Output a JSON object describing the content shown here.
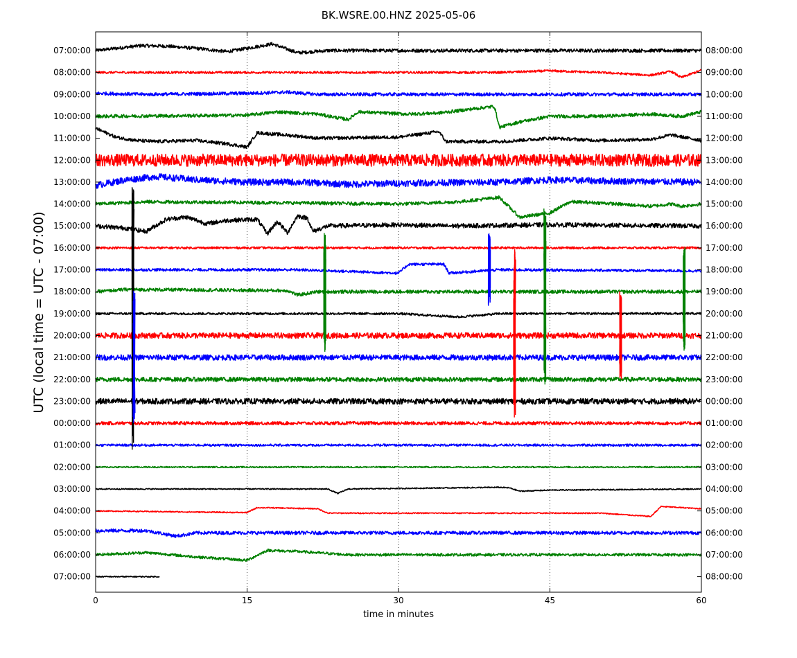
{
  "chart_data": {
    "type": "line",
    "title": "BK.WSRE.00.HNZ 2025-05-06",
    "xlabel": "time in minutes",
    "ylabel": "UTC (local time = UTC - 07:00)",
    "xlim": [
      0,
      60
    ],
    "x_ticks": [
      0,
      15,
      30,
      45,
      60
    ],
    "x_tick_labels": [
      "0",
      "15",
      "30",
      "45",
      "60"
    ],
    "grid": "vertical dotted",
    "colors": [
      "#000000",
      "#ff0000",
      "#0000ff",
      "#008000"
    ],
    "left_tick_labels": [
      "07:00:00",
      "08:00:00",
      "09:00:00",
      "10:00:00",
      "11:00:00",
      "12:00:00",
      "13:00:00",
      "14:00:00",
      "15:00:00",
      "16:00:00",
      "17:00:00",
      "18:00:00",
      "19:00:00",
      "20:00:00",
      "21:00:00",
      "22:00:00",
      "23:00:00",
      "00:00:00",
      "01:00:00",
      "02:00:00",
      "03:00:00",
      "04:00:00",
      "05:00:00",
      "06:00:00",
      "07:00:00"
    ],
    "right_tick_labels": [
      "08:00:00",
      "09:00:00",
      "10:00:00",
      "11:00:00",
      "12:00:00",
      "13:00:00",
      "14:00:00",
      "15:00:00",
      "16:00:00",
      "17:00:00",
      "18:00:00",
      "19:00:00",
      "20:00:00",
      "21:00:00",
      "22:00:00",
      "23:00:00",
      "00:00:00",
      "01:00:00",
      "02:00:00",
      "03:00:00",
      "04:00:00",
      "05:00:00",
      "06:00:00",
      "07:00:00",
      "08:00:00"
    ],
    "traces": [
      {
        "color": "#000000",
        "x_end": 60,
        "noise": 0.15,
        "baseline": [
          [
            0,
            0
          ],
          [
            2,
            0.2
          ],
          [
            4.5,
            0.45
          ],
          [
            7,
            0.4
          ],
          [
            10,
            0.2
          ],
          [
            13,
            -0.1
          ],
          [
            15,
            0.2
          ],
          [
            17.5,
            0.6
          ],
          [
            20,
            -0.2
          ],
          [
            23,
            0
          ],
          [
            40,
            0
          ],
          [
            60,
            0
          ]
        ]
      },
      {
        "color": "#ff0000",
        "x_end": 60,
        "noise": 0.1,
        "baseline": [
          [
            0,
            0
          ],
          [
            40,
            0
          ],
          [
            45,
            0.15
          ],
          [
            50,
            0
          ],
          [
            55,
            -0.25
          ],
          [
            57,
            0.1
          ],
          [
            58,
            -0.45
          ],
          [
            60,
            0.2
          ]
        ]
      },
      {
        "color": "#0000ff",
        "x_end": 60,
        "noise": 0.15,
        "baseline": [
          [
            0,
            0.1
          ],
          [
            5,
            0
          ],
          [
            15,
            0.1
          ],
          [
            19,
            0.2
          ],
          [
            22,
            0
          ],
          [
            60,
            0
          ]
        ]
      },
      {
        "color": "#008000",
        "x_end": 60,
        "noise": 0.15,
        "baseline": [
          [
            0,
            0
          ],
          [
            15,
            0.1
          ],
          [
            18,
            0.4
          ],
          [
            22,
            0.2
          ],
          [
            25,
            -0.3
          ],
          [
            26,
            0.4
          ],
          [
            31,
            0.2
          ],
          [
            34,
            0.3
          ],
          [
            39.5,
            0.9
          ],
          [
            40,
            -1
          ],
          [
            42,
            -0.5
          ],
          [
            45,
            0
          ],
          [
            50,
            0
          ],
          [
            55,
            0.2
          ],
          [
            58,
            0
          ],
          [
            60,
            0.4
          ]
        ]
      },
      {
        "color": "#000000",
        "x_end": 60,
        "noise": 0.15,
        "baseline": [
          [
            0,
            0.9
          ],
          [
            2,
            0.1
          ],
          [
            4,
            -0.2
          ],
          [
            6,
            -0.3
          ],
          [
            10,
            -0.2
          ],
          [
            13,
            -0.5
          ],
          [
            15,
            -0.8
          ],
          [
            16,
            0.5
          ],
          [
            20,
            0.2
          ],
          [
            22,
            0
          ],
          [
            30,
            0.1
          ],
          [
            34,
            0.6
          ],
          [
            34.7,
            -0.3
          ],
          [
            40,
            -0.3
          ],
          [
            45,
            0
          ],
          [
            50,
            -0.2
          ],
          [
            55,
            -0.1
          ],
          [
            57,
            0.3
          ],
          [
            60,
            -0.2
          ]
        ]
      },
      {
        "color": "#ff0000",
        "x_end": 60,
        "noise": 0.55,
        "baseline": [
          [
            0,
            0
          ],
          [
            60,
            0
          ]
        ]
      },
      {
        "color": "#0000ff",
        "x_end": 60,
        "noise": 0.3,
        "baseline": [
          [
            0,
            -0.3
          ],
          [
            3,
            0.2
          ],
          [
            6,
            0.5
          ],
          [
            10,
            0.2
          ],
          [
            15,
            0
          ],
          [
            20,
            0
          ],
          [
            25,
            -0.2
          ],
          [
            30,
            -0.1
          ],
          [
            40,
            0
          ],
          [
            45,
            0.2
          ],
          [
            50,
            0.1
          ],
          [
            60,
            0
          ]
        ]
      },
      {
        "color": "#008000",
        "x_end": 60,
        "noise": 0.15,
        "baseline": [
          [
            0,
            0
          ],
          [
            5,
            0.2
          ],
          [
            20,
            0.1
          ],
          [
            30,
            0
          ],
          [
            36,
            0.2
          ],
          [
            40,
            0.6
          ],
          [
            42,
            -1.2
          ],
          [
            45,
            -0.8
          ],
          [
            47,
            0.2
          ],
          [
            50,
            0.1
          ],
          [
            55,
            -0.2
          ],
          [
            57,
            0
          ],
          [
            58,
            -0.2
          ],
          [
            60,
            0
          ]
        ]
      },
      {
        "color": "#000000",
        "x_end": 60,
        "noise": 0.2,
        "baseline": [
          [
            0,
            0
          ],
          [
            3,
            -0.2
          ],
          [
            5,
            -0.5
          ],
          [
            7,
            0.6
          ],
          [
            9,
            0.8
          ],
          [
            11,
            0.2
          ],
          [
            13,
            0.5
          ],
          [
            16,
            0.6
          ],
          [
            17,
            -0.7
          ],
          [
            18,
            0.4
          ],
          [
            19,
            -0.6
          ],
          [
            20,
            0.9
          ],
          [
            21,
            0.7
          ],
          [
            21.5,
            -0.5
          ],
          [
            23,
            0
          ],
          [
            30,
            0.1
          ],
          [
            35,
            0
          ],
          [
            45,
            0.1
          ],
          [
            60,
            0
          ]
        ]
      },
      {
        "color": "#ff0000",
        "x_end": 60,
        "noise": 0.1,
        "baseline": [
          [
            0,
            0
          ],
          [
            40,
            0
          ],
          [
            60,
            0
          ]
        ]
      },
      {
        "color": "#0000ff",
        "x_end": 60,
        "noise": 0.12,
        "baseline": [
          [
            0,
            0
          ],
          [
            20,
            0
          ],
          [
            30,
            -0.3
          ],
          [
            31,
            0.5
          ],
          [
            34.5,
            0.5
          ],
          [
            35,
            -0.3
          ],
          [
            40,
            0
          ],
          [
            60,
            -0.1
          ]
        ]
      },
      {
        "color": "#008000",
        "x_end": 60,
        "noise": 0.15,
        "baseline": [
          [
            0,
            0
          ],
          [
            3,
            0.2
          ],
          [
            19,
            0.1
          ],
          [
            20,
            -0.3
          ],
          [
            22,
            0
          ],
          [
            60,
            0
          ]
        ]
      },
      {
        "color": "#000000",
        "x_end": 60,
        "noise": 0.1,
        "baseline": [
          [
            0,
            0
          ],
          [
            30,
            0
          ],
          [
            34,
            -0.2
          ],
          [
            36,
            -0.3
          ],
          [
            40,
            0
          ],
          [
            60,
            0
          ]
        ]
      },
      {
        "color": "#ff0000",
        "x_end": 60,
        "noise": 0.25,
        "baseline": [
          [
            0,
            0
          ],
          [
            60,
            0
          ]
        ]
      },
      {
        "color": "#0000ff",
        "x_end": 60,
        "noise": 0.25,
        "baseline": [
          [
            0,
            0
          ],
          [
            60,
            0
          ]
        ]
      },
      {
        "color": "#008000",
        "x_end": 60,
        "noise": 0.2,
        "baseline": [
          [
            0,
            0
          ],
          [
            60,
            0
          ]
        ]
      },
      {
        "color": "#000000",
        "x_end": 60,
        "noise": 0.25,
        "baseline": [
          [
            0,
            0
          ],
          [
            60,
            0
          ]
        ]
      },
      {
        "color": "#ff0000",
        "x_end": 60,
        "noise": 0.15,
        "baseline": [
          [
            0,
            0
          ],
          [
            60,
            0
          ]
        ]
      },
      {
        "color": "#0000ff",
        "x_end": 60,
        "noise": 0.1,
        "baseline": [
          [
            0,
            0
          ],
          [
            60,
            0
          ]
        ]
      },
      {
        "color": "#008000",
        "x_end": 60,
        "noise": 0.06,
        "baseline": [
          [
            0,
            0
          ],
          [
            60,
            0
          ]
        ]
      },
      {
        "color": "#000000",
        "x_end": 60,
        "noise": 0.05,
        "baseline": [
          [
            0,
            0
          ],
          [
            23,
            0
          ],
          [
            24,
            -0.4
          ],
          [
            25,
            0
          ],
          [
            40,
            0.15
          ],
          [
            41,
            0.1
          ],
          [
            42,
            -0.2
          ],
          [
            45,
            -0.1
          ],
          [
            60,
            0
          ]
        ]
      },
      {
        "color": "#ff0000",
        "x_end": 60,
        "noise": 0.05,
        "baseline": [
          [
            0,
            0
          ],
          [
            15,
            -0.15
          ],
          [
            16,
            0.3
          ],
          [
            22,
            0.2
          ],
          [
            23,
            -0.2
          ],
          [
            50,
            -0.2
          ],
          [
            55,
            -0.5
          ],
          [
            56,
            0.4
          ],
          [
            60,
            0.2
          ]
        ]
      },
      {
        "color": "#0000ff",
        "x_end": 60,
        "noise": 0.15,
        "baseline": [
          [
            0,
            0.2
          ],
          [
            5,
            0.2
          ],
          [
            8,
            -0.3
          ],
          [
            10,
            0
          ],
          [
            15,
            0
          ],
          [
            60,
            0
          ],
          [
            55,
            0
          ],
          [
            56,
            -0.2
          ],
          [
            60,
            0
          ]
        ]
      },
      {
        "color": "#008000",
        "x_end": 60,
        "noise": 0.12,
        "baseline": [
          [
            0,
            0
          ],
          [
            5,
            0.2
          ],
          [
            10,
            -0.2
          ],
          [
            15,
            -0.5
          ],
          [
            17,
            0.4
          ],
          [
            20,
            0.3
          ],
          [
            25,
            0
          ],
          [
            60,
            0
          ]
        ]
      },
      {
        "color": "#000000",
        "x_end": 6.3,
        "noise": 0.05,
        "baseline": [
          [
            0,
            0
          ],
          [
            6.3,
            0
          ]
        ]
      }
    ],
    "events": [
      {
        "trace": 8,
        "x": 3.7,
        "top": -3.5,
        "bottom": 20.5
      },
      {
        "trace": 14,
        "x": 3.8,
        "top": -6,
        "bottom": 6
      },
      {
        "trace": 11,
        "x": 22.7,
        "top": -5.3,
        "bottom": 5.5
      },
      {
        "trace": 10,
        "x": 39,
        "top": -3.3,
        "bottom": 3.3
      },
      {
        "trace": 13,
        "x": 41.5,
        "top": -7.8,
        "bottom": 7.5
      },
      {
        "trace": 11,
        "x": 44.5,
        "top": -7.5,
        "bottom": 8.5
      },
      {
        "trace": 13,
        "x": 52,
        "top": -4,
        "bottom": 4
      },
      {
        "trace": 11,
        "x": 58.3,
        "top": -4,
        "bottom": 5.4
      }
    ]
  }
}
